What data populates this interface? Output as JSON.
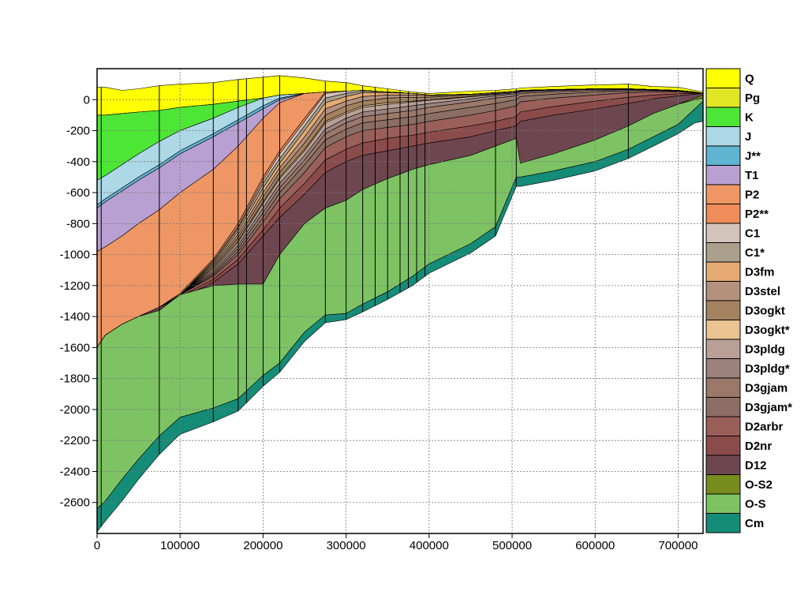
{
  "chart_data": {
    "type": "area",
    "title": "",
    "xlabel": "",
    "ylabel": "",
    "xlim": [
      0,
      730000
    ],
    "ylim": [
      -2800,
      200
    ],
    "x_ticks": [
      0,
      100000,
      200000,
      300000,
      400000,
      500000,
      600000,
      700000
    ],
    "y_ticks": [
      0,
      -200,
      -400,
      -600,
      -800,
      -1000,
      -1200,
      -1400,
      -1600,
      -1800,
      -2000,
      -2200,
      -2400,
      -2600
    ],
    "grid": true,
    "legend_position": "right",
    "well_positions_x": [
      5000,
      75000,
      140000,
      170000,
      180000,
      200000,
      220000,
      275000,
      300000,
      320000,
      335000,
      350000,
      365000,
      375000,
      385000,
      395000,
      480000,
      505000,
      640000
    ],
    "x": [
      0,
      10000,
      30000,
      50000,
      75000,
      100000,
      140000,
      170000,
      200000,
      220000,
      250000,
      275000,
      300000,
      320000,
      350000,
      380000,
      400000,
      450000,
      480000,
      505000,
      510000,
      550000,
      600000,
      640000,
      670000,
      700000,
      720000,
      730000
    ],
    "surface_top": [
      80,
      80,
      60,
      70,
      90,
      100,
      110,
      130,
      145,
      155,
      140,
      120,
      110,
      90,
      70,
      50,
      40,
      55,
      60,
      70,
      75,
      85,
      95,
      100,
      85,
      80,
      60,
      50
    ],
    "layers": [
      {
        "name": "Q",
        "color": "#ffff00",
        "bottom": [
          -100,
          -100,
          -90,
          -80,
          -70,
          -50,
          -30,
          -10,
          10,
          30,
          40,
          50,
          55,
          60,
          50,
          40,
          30,
          35,
          45,
          55,
          60,
          65,
          70,
          70,
          65,
          60,
          50,
          40
        ]
      },
      {
        "name": "Pg",
        "color": "#e1e626",
        "bottom": [
          -100,
          -100,
          -90,
          -80,
          -70,
          -50,
          -30,
          -10,
          10,
          30,
          40,
          50,
          55,
          60,
          50,
          40,
          30,
          35,
          45,
          55,
          60,
          65,
          70,
          70,
          65,
          60,
          50,
          40
        ]
      },
      {
        "name": "K",
        "color": "#4ee636",
        "bottom": [
          -520,
          -490,
          -420,
          -350,
          -270,
          -200,
          -120,
          -50,
          10,
          30,
          40,
          50,
          55,
          60,
          50,
          40,
          30,
          35,
          45,
          55,
          60,
          65,
          70,
          70,
          65,
          60,
          50,
          40
        ]
      },
      {
        "name": "J",
        "color": "#add8e6",
        "bottom": [
          -680,
          -640,
          -570,
          -500,
          -420,
          -330,
          -220,
          -130,
          -40,
          10,
          40,
          50,
          55,
          60,
          50,
          40,
          30,
          35,
          45,
          55,
          60,
          65,
          70,
          70,
          65,
          60,
          50,
          40
        ]
      },
      {
        "name": "J**",
        "color": "#5fb4d2",
        "bottom": [
          -700,
          -660,
          -590,
          -520,
          -440,
          -350,
          -240,
          -150,
          -60,
          0,
          40,
          50,
          55,
          60,
          50,
          40,
          30,
          35,
          45,
          55,
          60,
          65,
          70,
          70,
          65,
          60,
          50,
          40
        ]
      },
      {
        "name": "T1",
        "color": "#b9a0d2",
        "bottom": [
          -980,
          -950,
          -880,
          -800,
          -710,
          -600,
          -450,
          -300,
          -120,
          -20,
          40,
          50,
          55,
          60,
          50,
          40,
          30,
          35,
          45,
          55,
          60,
          65,
          70,
          70,
          65,
          60,
          50,
          40
        ]
      },
      {
        "name": "P2",
        "color": "#ee9664",
        "bottom": [
          -1600,
          -1520,
          -1450,
          -1400,
          -1340,
          -1250,
          -1030,
          -800,
          -500,
          -330,
          -120,
          50,
          55,
          60,
          50,
          40,
          30,
          35,
          45,
          55,
          60,
          65,
          70,
          70,
          65,
          60,
          50,
          40
        ]
      },
      {
        "name": "P2**",
        "color": "#f08c5a",
        "bottom": [
          -1600,
          -1520,
          -1450,
          -1400,
          -1340,
          -1260,
          -1040,
          -820,
          -520,
          -350,
          -140,
          40,
          55,
          60,
          50,
          40,
          30,
          35,
          45,
          55,
          60,
          65,
          70,
          70,
          65,
          60,
          50,
          40
        ]
      },
      {
        "name": "C1",
        "color": "#d2c3bb",
        "bottom": [
          -1600,
          -1520,
          -1450,
          -1400,
          -1340,
          -1260,
          -1050,
          -830,
          -540,
          -380,
          -170,
          10,
          40,
          55,
          50,
          40,
          30,
          35,
          45,
          55,
          60,
          65,
          70,
          70,
          65,
          60,
          50,
          40
        ]
      },
      {
        "name": "C1*",
        "color": "#aba08c",
        "bottom": [
          -1600,
          -1520,
          -1450,
          -1400,
          -1340,
          -1260,
          -1060,
          -850,
          -570,
          -410,
          -200,
          -20,
          20,
          45,
          45,
          40,
          30,
          35,
          45,
          55,
          60,
          65,
          70,
          70,
          65,
          60,
          50,
          40
        ]
      },
      {
        "name": "D3fm",
        "color": "#e6aa73",
        "bottom": [
          -1600,
          -1520,
          -1450,
          -1400,
          -1340,
          -1260,
          -1070,
          -870,
          -600,
          -440,
          -240,
          -60,
          -10,
          20,
          30,
          30,
          25,
          35,
          45,
          55,
          60,
          65,
          70,
          70,
          65,
          60,
          50,
          40
        ]
      },
      {
        "name": "D3stel",
        "color": "#b4917d",
        "bottom": [
          -1600,
          -1520,
          -1450,
          -1400,
          -1340,
          -1260,
          -1080,
          -890,
          -630,
          -470,
          -280,
          -100,
          -40,
          -10,
          10,
          15,
          15,
          30,
          40,
          50,
          58,
          65,
          70,
          70,
          65,
          60,
          50,
          40
        ]
      },
      {
        "name": "D3ogkt",
        "color": "#a5825f",
        "bottom": [
          -1600,
          -1520,
          -1450,
          -1400,
          -1340,
          -1260,
          -1090,
          -910,
          -660,
          -500,
          -320,
          -140,
          -80,
          -40,
          -20,
          -10,
          0,
          20,
          35,
          45,
          55,
          62,
          68,
          70,
          65,
          60,
          50,
          40
        ]
      },
      {
        "name": "D3ogkt*",
        "color": "#ebc391",
        "bottom": [
          -1600,
          -1520,
          -1450,
          -1400,
          -1340,
          -1260,
          -1100,
          -920,
          -670,
          -510,
          -330,
          -150,
          -90,
          -50,
          -30,
          -15,
          -5,
          18,
          33,
          44,
          54,
          62,
          68,
          70,
          65,
          60,
          50,
          40
        ]
      },
      {
        "name": "D3pldg",
        "color": "#b9a096",
        "bottom": [
          -1600,
          -1520,
          -1450,
          -1400,
          -1340,
          -1260,
          -1110,
          -940,
          -700,
          -540,
          -360,
          -190,
          -120,
          -80,
          -60,
          -40,
          -25,
          5,
          25,
          38,
          50,
          58,
          66,
          68,
          64,
          58,
          50,
          40
        ]
      },
      {
        "name": "D3pldg*",
        "color": "#9b827d",
        "bottom": [
          -1600,
          -1520,
          -1450,
          -1400,
          -1340,
          -1260,
          -1120,
          -960,
          -730,
          -570,
          -390,
          -220,
          -150,
          -110,
          -90,
          -70,
          -50,
          -15,
          10,
          25,
          40,
          50,
          60,
          64,
          62,
          56,
          48,
          40
        ]
      },
      {
        "name": "D3gjam",
        "color": "#9b7869",
        "bottom": [
          -1600,
          -1520,
          -1450,
          -1400,
          -1340,
          -1260,
          -1130,
          -980,
          -760,
          -600,
          -420,
          -260,
          -190,
          -150,
          -130,
          -110,
          -90,
          -50,
          -25,
          0,
          20,
          35,
          50,
          58,
          58,
          54,
          46,
          40
        ]
      },
      {
        "name": "D3gjam*",
        "color": "#8c6e64",
        "bottom": [
          -1600,
          -1520,
          -1450,
          -1400,
          -1340,
          -1260,
          -1140,
          -1000,
          -790,
          -640,
          -470,
          -310,
          -240,
          -200,
          -180,
          -160,
          -140,
          -100,
          -70,
          -40,
          -15,
          10,
          30,
          45,
          50,
          50,
          44,
          40
        ]
      },
      {
        "name": "D2arbr",
        "color": "#9b5f5a",
        "bottom": [
          -1600,
          -1520,
          -1450,
          -1400,
          -1340,
          -1270,
          -1160,
          -1030,
          -840,
          -700,
          -540,
          -390,
          -320,
          -280,
          -250,
          -230,
          -210,
          -170,
          -140,
          -110,
          -80,
          -45,
          -10,
          15,
          30,
          38,
          40,
          40
        ]
      },
      {
        "name": "D2nr",
        "color": "#8c4b4b",
        "bottom": [
          -1600,
          -1520,
          -1450,
          -1400,
          -1340,
          -1280,
          -1180,
          -1060,
          -880,
          -760,
          -610,
          -470,
          -400,
          -360,
          -330,
          -300,
          -280,
          -240,
          -200,
          -170,
          -140,
          -100,
          -60,
          -25,
          5,
          25,
          35,
          40
        ]
      },
      {
        "name": "D12",
        "color": "#6e4650",
        "bottom": [
          -1600,
          -1520,
          -1450,
          -1400,
          -1360,
          -1260,
          -1200,
          -1190,
          -1190,
          -1000,
          -800,
          -700,
          -650,
          -580,
          -510,
          -450,
          -420,
          -360,
          -300,
          -250,
          -410,
          -350,
          -260,
          -170,
          -90,
          -30,
          10,
          30
        ]
      },
      {
        "name": "O-S2",
        "color": "#788c1e",
        "bottom": [
          -1600,
          -1520,
          -1450,
          -1400,
          -1360,
          -1260,
          -1200,
          -1190,
          -1190,
          -1000,
          -800,
          -700,
          -650,
          -580,
          -510,
          -450,
          -420,
          -360,
          -300,
          -250,
          -410,
          -350,
          -260,
          -170,
          -90,
          -30,
          0,
          10
        ]
      },
      {
        "name": "O-S",
        "color": "#7dc364",
        "bottom": [
          -2640,
          -2590,
          -2450,
          -2320,
          -2170,
          -2050,
          -1990,
          -1930,
          -1780,
          -1700,
          -1500,
          -1390,
          -1380,
          -1320,
          -1240,
          -1140,
          -1060,
          -930,
          -820,
          -500,
          -500,
          -460,
          -400,
          -320,
          -240,
          -160,
          -60,
          -10
        ]
      },
      {
        "name": "Cm",
        "color": "#148c78",
        "bottom": [
          -2790,
          -2720,
          -2590,
          -2450,
          -2290,
          -2160,
          -2080,
          -2010,
          -1850,
          -1760,
          -1560,
          -1440,
          -1420,
          -1370,
          -1290,
          -1200,
          -1120,
          -990,
          -880,
          -560,
          -560,
          -520,
          -460,
          -380,
          -300,
          -220,
          -150,
          -140
        ]
      }
    ]
  }
}
